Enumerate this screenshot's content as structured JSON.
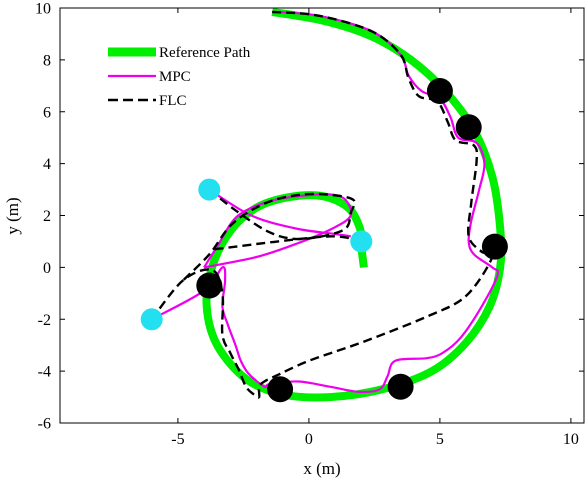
{
  "chart_data": {
    "type": "line",
    "title": "",
    "xlabel": "x (m)",
    "ylabel": "y (m)",
    "xlim": [
      -9.5,
      10.5
    ],
    "ylim": [
      -6,
      10
    ],
    "xticks": [
      -5,
      0,
      5,
      10
    ],
    "yticks": [
      -6,
      -4,
      -2,
      0,
      2,
      4,
      6,
      8,
      10
    ],
    "grid": false,
    "legend": "top-left",
    "series": [
      {
        "name": "Reference Path",
        "color": "#00ee00",
        "style": "solid-thick",
        "x": [
          -1.4,
          0.6,
          2.4,
          3.9,
          5.2,
          6.3,
          7.0,
          7.3,
          7.3,
          6.9,
          6.0,
          4.7,
          2.8,
          0.8,
          -1.0,
          -2.4,
          -3.5,
          -3.9,
          -3.7,
          -3.0,
          -2.0,
          -0.8,
          0.5,
          1.5,
          1.95,
          2.0,
          2.1
        ],
        "y": [
          9.85,
          9.5,
          8.9,
          8.0,
          6.8,
          5.3,
          3.5,
          1.5,
          0.0,
          -1.5,
          -2.9,
          -4.0,
          -4.7,
          -5.0,
          -4.9,
          -4.3,
          -3.0,
          -1.5,
          0.0,
          1.4,
          2.3,
          2.7,
          2.75,
          2.3,
          1.5,
          0.8,
          0.0
        ]
      },
      {
        "name": "MPC",
        "color": "#ee00ee",
        "style": "solid",
        "x": [
          -1.4,
          0.4,
          2.4,
          3.5,
          3.8,
          4.3,
          5.0,
          5.4,
          5.7,
          6.4,
          6.7,
          6.5,
          6.2,
          6.1,
          6.3,
          7.0,
          7.2,
          6.6,
          5.8,
          5.1,
          4.5,
          3.3,
          3.0,
          2.7,
          1.9,
          0.8,
          -0.4,
          -1.5,
          -1.7,
          -2.3,
          -2.6,
          -2.8,
          -3.1,
          -3.3,
          -3.2,
          -3.3,
          -4.0,
          -6.0
        ],
        "y": [
          9.85,
          9.7,
          9.1,
          8.2,
          7.4,
          6.8,
          6.5,
          5.8,
          5.0,
          4.8,
          4.0,
          3.0,
          1.8,
          1.0,
          0.5,
          0.0,
          -0.3,
          -1.5,
          -2.7,
          -3.3,
          -3.5,
          -3.6,
          -4.2,
          -4.7,
          -4.8,
          -4.6,
          -4.4,
          -4.5,
          -4.6,
          -4.1,
          -3.6,
          -3.0,
          -2.2,
          -1.5,
          -0.5,
          0.0,
          -0.9,
          -2.0
        ]
      },
      {
        "name": "FLC",
        "color": "#000000",
        "style": "dashed",
        "x": [
          -1.4,
          0.4,
          2.4,
          3.5,
          3.8,
          4.2,
          4.9,
          5.3,
          5.6,
          6.3,
          6.4,
          6.2,
          6.1,
          6.6,
          7.0,
          6.0,
          4.5,
          2.0,
          0.0,
          -1.3,
          -1.7,
          -1.9,
          -1.9,
          -2.1,
          -2.4,
          -2.7,
          -3.0,
          -3.3,
          -3.3,
          -3.7,
          -4.8,
          -6.0
        ],
        "y": [
          9.85,
          9.7,
          9.1,
          8.2,
          7.3,
          6.6,
          6.4,
          5.6,
          4.9,
          4.7,
          4.1,
          2.5,
          1.2,
          0.6,
          0.4,
          -1.1,
          -1.9,
          -2.9,
          -3.6,
          -4.2,
          -4.4,
          -4.6,
          -5.0,
          -4.9,
          -4.6,
          -3.9,
          -3.3,
          -2.6,
          -1.0,
          -0.1,
          -0.5,
          -2.0
        ]
      }
    ],
    "extra_lines": [
      {
        "from": "MPC",
        "color": "#ee00ee",
        "style": "solid",
        "x": [
          -4.0,
          -2.0,
          -0.5,
          0.9,
          1.6,
          1.4,
          0.9,
          0.2,
          -1.3,
          -2.7,
          -3.5,
          -4.0
        ],
        "y": [
          0.0,
          0.4,
          0.9,
          1.5,
          2.0,
          2.6,
          2.8,
          2.8,
          2.6,
          2.0,
          0.8,
          0.0
        ]
      },
      {
        "from": "MPC",
        "color": "#ee00ee",
        "style": "solid",
        "x": [
          -3.8,
          -2.2,
          -0.5,
          0.9,
          1.6
        ],
        "y": [
          3.0,
          2.0,
          1.5,
          1.3,
          1.2
        ]
      },
      {
        "from": "FLC",
        "color": "#000000",
        "style": "dashed",
        "x": [
          -3.8,
          -2.8,
          -1.6,
          -0.6,
          0.5,
          1.4,
          1.6,
          1.7,
          0.8,
          -0.3,
          -1.6,
          -2.9,
          -3.8,
          -4.8
        ],
        "y": [
          3.0,
          2.2,
          1.4,
          1.1,
          1.2,
          1.5,
          2.1,
          2.6,
          2.8,
          2.8,
          2.5,
          1.7,
          0.5,
          -0.5
        ]
      },
      {
        "from": "FLC",
        "color": "#000000",
        "style": "dashed",
        "x": [
          -3.6,
          -2.0,
          -0.3,
          0.9,
          1.7
        ],
        "y": [
          0.7,
          0.9,
          1.1,
          1.2,
          1.1
        ]
      }
    ],
    "markers": [
      {
        "label": "obstacle",
        "color": "#000000",
        "x": 5.0,
        "y": 6.8
      },
      {
        "label": "obstacle",
        "color": "#000000",
        "x": 6.1,
        "y": 5.4
      },
      {
        "label": "obstacle",
        "color": "#000000",
        "x": 7.1,
        "y": 0.8
      },
      {
        "label": "obstacle",
        "color": "#000000",
        "x": 3.5,
        "y": -4.6
      },
      {
        "label": "obstacle",
        "color": "#000000",
        "x": -1.1,
        "y": -4.7
      },
      {
        "label": "obstacle",
        "color": "#000000",
        "x": -3.8,
        "y": -0.7
      },
      {
        "label": "start",
        "color": "#22e0f0",
        "x": -3.8,
        "y": 3.0
      },
      {
        "label": "start",
        "color": "#22e0f0",
        "x": 2.0,
        "y": 1.0
      },
      {
        "label": "start",
        "color": "#22e0f0",
        "x": -6.0,
        "y": -2.0
      }
    ]
  }
}
